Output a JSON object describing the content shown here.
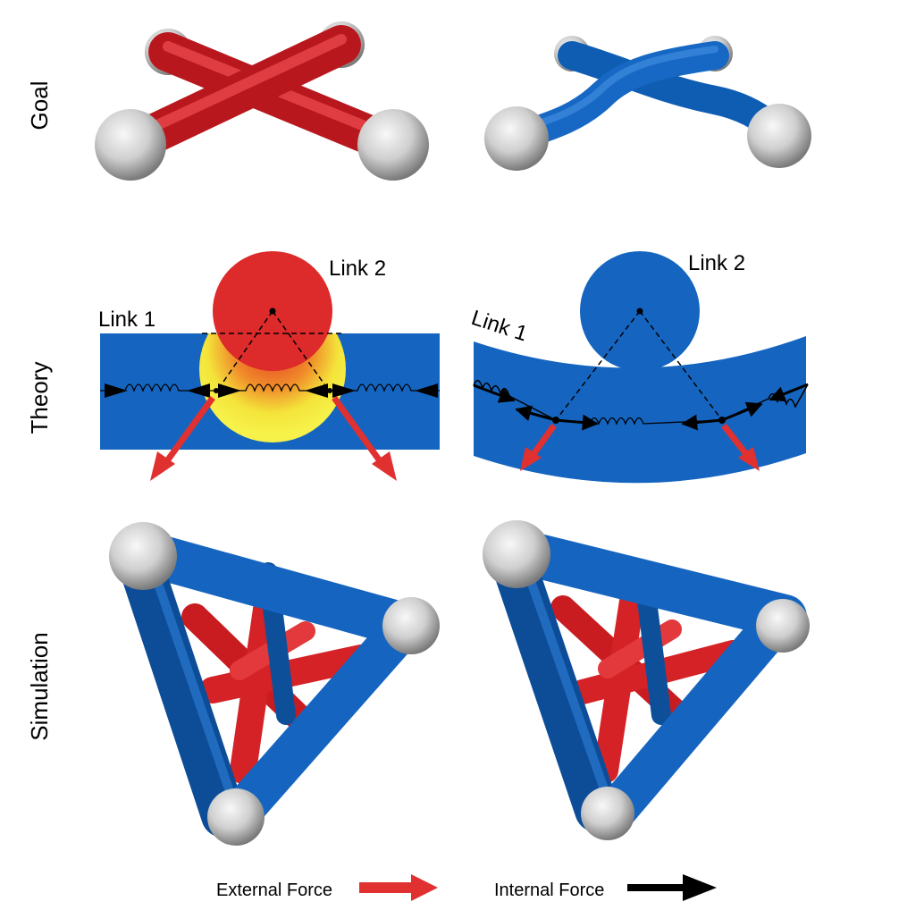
{
  "rows": {
    "goal": "Goal",
    "theory": "Theory",
    "simulation": "Simulation"
  },
  "theory_left": {
    "link1": "Link 1",
    "link2": "Link 2"
  },
  "theory_right": {
    "link1": "Link 1",
    "link2": "Link 2"
  },
  "legend": {
    "external": "External Force",
    "internal": "Internal Force"
  },
  "colors": {
    "rigid_red": "#d32228",
    "soft_blue": "#1565c0",
    "joint_grey": "#c8c8c8",
    "external_force": "#e03030",
    "internal_force": "#000000",
    "contact_yellow": "#f4f23a"
  }
}
